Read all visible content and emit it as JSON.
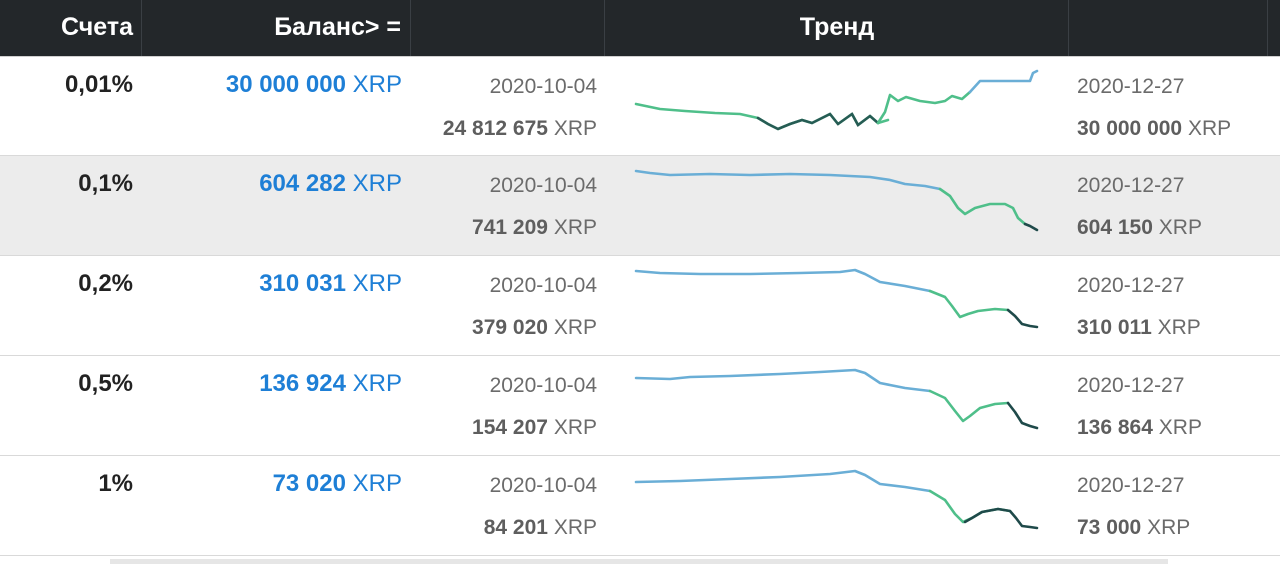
{
  "header": {
    "accounts_label": "Счета",
    "balance_label": "Баланс> =",
    "trend_label": "Тренд"
  },
  "colors": {
    "header_bg": "#23272a",
    "balance_blue": "#1e7fd6",
    "trend_up_green": "#4fbf8a",
    "trend_blue": "#6aaed6",
    "trend_dark": "#1f4a4a"
  },
  "rows": [
    {
      "percent": "0,01%",
      "balance_num": "30 000 000",
      "balance_unit": "XRP",
      "start_date": "2020-10-04",
      "start_num": "24 812 675",
      "start_unit": "XRP",
      "end_date": "2020-12-27",
      "end_num": "30 000 000",
      "end_unit": "XRP"
    },
    {
      "percent": "0,1%",
      "balance_num": "604 282",
      "balance_unit": "XRP",
      "start_date": "2020-10-04",
      "start_num": "741 209",
      "start_unit": "XRP",
      "end_date": "2020-12-27",
      "end_num": "604 150",
      "end_unit": "XRP"
    },
    {
      "percent": "0,2%",
      "balance_num": "310 031",
      "balance_unit": "XRP",
      "start_date": "2020-10-04",
      "start_num": "379 020",
      "start_unit": "XRP",
      "end_date": "2020-12-27",
      "end_num": "310 011",
      "end_unit": "XRP"
    },
    {
      "percent": "0,5%",
      "balance_num": "136 924",
      "balance_unit": "XRP",
      "start_date": "2020-10-04",
      "start_num": "154 207",
      "start_unit": "XRP",
      "end_date": "2020-12-27",
      "end_num": "136 864",
      "end_unit": "XRP"
    },
    {
      "percent": "1%",
      "balance_num": "73 020",
      "balance_unit": "XRP",
      "start_date": "2020-10-04",
      "start_num": "84 201",
      "start_unit": "XRP",
      "end_date": "2020-12-27",
      "end_num": "73 000",
      "end_unit": "XRP"
    }
  ]
}
